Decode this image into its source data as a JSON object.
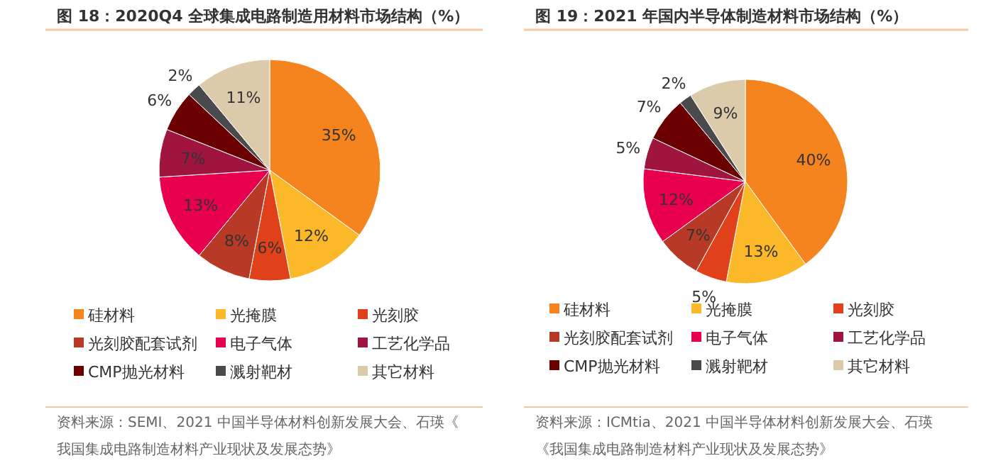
{
  "chart_data": [
    {
      "type": "pie",
      "title": "图 18：2020Q4 全球集成电路制造用材料市场结构（%）",
      "categories": [
        "硅材料",
        "光掩膜",
        "光刻胶",
        "光刻胶配套试剂",
        "电子气体",
        "工艺化学品",
        "CMP抛光材料",
        "溅射靶材",
        "其它材料"
      ],
      "values": [
        35,
        12,
        6,
        8,
        13,
        7,
        6,
        2,
        11
      ],
      "value_labels": [
        "35%",
        "12%",
        "6%",
        "8%",
        "13%",
        "7%",
        "6%",
        "2%",
        "11%"
      ],
      "colors": [
        "#f5841f",
        "#fbb829",
        "#e0401a",
        "#b83a26",
        "#e8004f",
        "#a0153e",
        "#6b0000",
        "#4a4a4c",
        "#dccbaa"
      ],
      "legend": "bottom",
      "annotations": [
        "资料来源：SEMI、2021 中国半导体材料创新发展大会、石瑛《我国集成电路制造材料产业现状及发展态势》"
      ]
    },
    {
      "type": "pie",
      "title": "图 19：2021 年国内半导体制造材料市场结构（%）",
      "categories": [
        "硅材料",
        "光掩膜",
        "光刻胶",
        "光刻胶配套试剂",
        "电子气体",
        "工艺化学品",
        "CMP抛光材料",
        "溅射靶材",
        "其它材料"
      ],
      "values": [
        40,
        13,
        5,
        7,
        12,
        5,
        7,
        2,
        9
      ],
      "value_labels": [
        "40%",
        "13%",
        "5%",
        "7%",
        "12%",
        "5%",
        "7%",
        "2%",
        "9%"
      ],
      "colors": [
        "#f5841f",
        "#fbb829",
        "#e0401a",
        "#b83a26",
        "#e8004f",
        "#a0153e",
        "#6b0000",
        "#4a4a4c",
        "#dccbaa"
      ],
      "legend": "bottom",
      "annotations": [
        "资料来源：ICMtia、2021 中国半导体材料创新发展大会、石瑛《我国集成电路制造材料产业现状及发展态势》"
      ]
    }
  ]
}
